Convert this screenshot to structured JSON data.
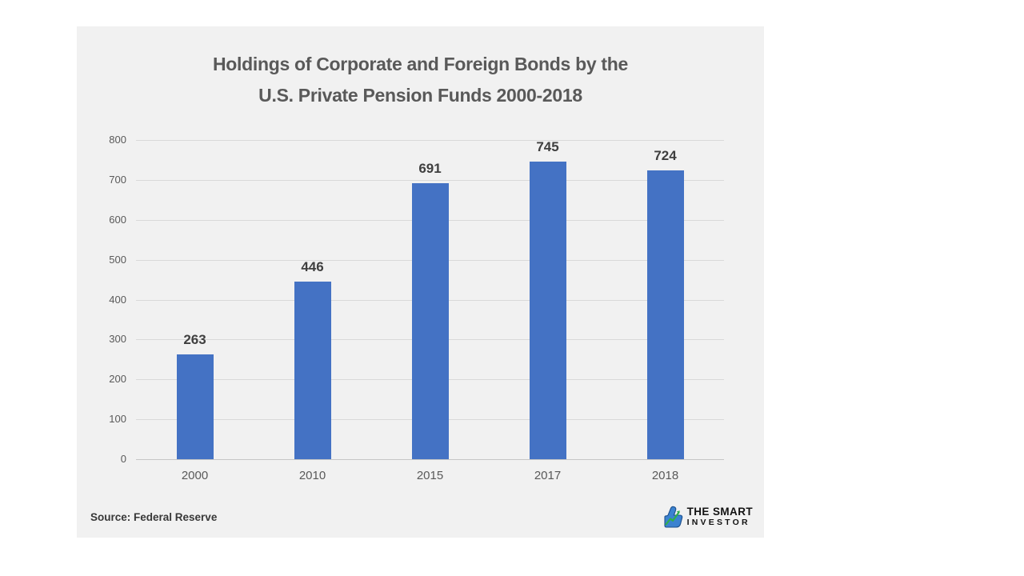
{
  "page": {
    "background_color": "#ffffff",
    "card_background_color": "#f1f1f1"
  },
  "title": {
    "line1": "Holdings of Corporate and Foreign Bonds by the",
    "line2": "U.S. Private Pension Funds 2000-2018"
  },
  "chart_data": {
    "type": "bar",
    "title": "Holdings of Corporate and Foreign Bonds by the U.S. Private Pension Funds 2000-2018",
    "categories": [
      "2000",
      "2010",
      "2015",
      "2017",
      "2018"
    ],
    "values": [
      263,
      446,
      691,
      745,
      724
    ],
    "xlabel": "",
    "ylabel": "",
    "ylim": [
      0,
      800
    ],
    "yticks": [
      0,
      100,
      200,
      300,
      400,
      500,
      600,
      700,
      800
    ],
    "grid": true,
    "legend": "none",
    "bar_color": "#4472c4",
    "gridline_color": "#d9d9d9",
    "tick_label_color": "#595959",
    "value_label_color": "#3f3f3f"
  },
  "footer": {
    "source_label": "Source: Federal Reserve"
  },
  "logo": {
    "line1": "THE SMART",
    "line2": "INVESTOR",
    "icon": "thumbs-up-chart-icon",
    "icon_blue": "#3b82d0",
    "icon_dark_blue": "#1d4f8c",
    "icon_green": "#2fae4a",
    "text_color": "#121212"
  }
}
